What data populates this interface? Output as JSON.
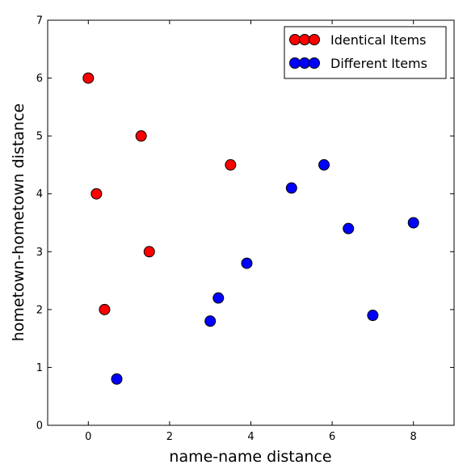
{
  "chart_data": {
    "type": "scatter",
    "title": "",
    "xlabel": "name-name distance",
    "ylabel": "hometown-hometown distance",
    "xlim": [
      -1,
      9
    ],
    "ylim": [
      0,
      7
    ],
    "xticks": [
      0,
      2,
      4,
      6,
      8
    ],
    "yticks": [
      0,
      1,
      2,
      3,
      4,
      5,
      6,
      7
    ],
    "grid": false,
    "legend_position": "top-right",
    "series": [
      {
        "name": "Identical Items",
        "color": "#ff0000",
        "points": [
          {
            "x": 0.0,
            "y": 6.0
          },
          {
            "x": 0.2,
            "y": 4.0
          },
          {
            "x": 0.4,
            "y": 2.0
          },
          {
            "x": 1.3,
            "y": 5.0
          },
          {
            "x": 1.5,
            "y": 3.0
          },
          {
            "x": 3.5,
            "y": 4.5
          }
        ]
      },
      {
        "name": "Different Items",
        "color": "#0000ff",
        "points": [
          {
            "x": 0.7,
            "y": 0.8
          },
          {
            "x": 3.0,
            "y": 1.8
          },
          {
            "x": 3.2,
            "y": 2.2
          },
          {
            "x": 3.9,
            "y": 2.8
          },
          {
            "x": 5.0,
            "y": 4.1
          },
          {
            "x": 5.8,
            "y": 4.5
          },
          {
            "x": 6.4,
            "y": 3.4
          },
          {
            "x": 7.0,
            "y": 1.9
          },
          {
            "x": 8.0,
            "y": 3.5
          }
        ]
      }
    ]
  }
}
